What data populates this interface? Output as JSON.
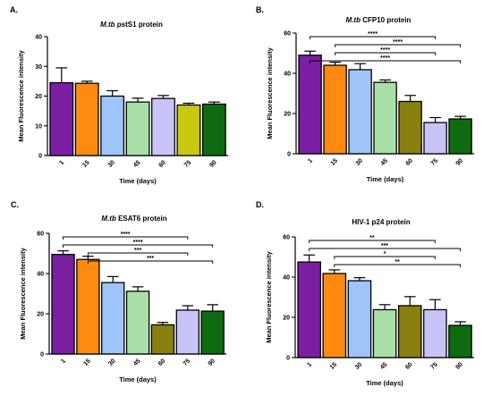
{
  "panels": [
    {
      "letter": "A.",
      "title_italic": "M.tb",
      "title_rest": " pstS1 protein"
    },
    {
      "letter": "B.",
      "title_italic": "M.tb",
      "title_rest": " CFP10 protein"
    },
    {
      "letter": "C.",
      "title_italic": "M.tb",
      "title_rest": " ESAT6 protein"
    },
    {
      "letter": "D.",
      "title_italic": "",
      "title_rest": "HIV-1 p24 protein"
    }
  ],
  "chart_data": [
    {
      "type": "bar",
      "title": "M.tb pstS1 protein",
      "xlabel": "Time (days)",
      "ylabel": "Mean Fluorescence intensity",
      "ylim": [
        0,
        40
      ],
      "yticks": [
        0,
        10,
        20,
        30,
        40
      ],
      "categories": [
        "1",
        "15",
        "30",
        "45",
        "60",
        "75",
        "90"
      ],
      "values": [
        24.5,
        24.3,
        20,
        18,
        19.2,
        17,
        17.3
      ],
      "errors": [
        5,
        0.7,
        1.8,
        1.3,
        1,
        0.6,
        0.7
      ],
      "colors": [
        "#7a1fa2",
        "#ff8a10",
        "#9fc4f8",
        "#a8e0a8",
        "#c8c4f8",
        "#c8c810",
        "#0e6b10"
      ],
      "significance": []
    },
    {
      "type": "bar",
      "title": "M.tb CFP10 protein",
      "xlabel": "Time (days)",
      "ylabel": "Mean Fluorescence intensity",
      "ylim": [
        0,
        60
      ],
      "yticks": [
        0,
        20,
        40,
        60
      ],
      "categories": [
        "1",
        "15",
        "30",
        "45",
        "60",
        "75",
        "90"
      ],
      "values": [
        49,
        44,
        41.8,
        35.5,
        26,
        15.5,
        17.3
      ],
      "errors": [
        2,
        1.5,
        3,
        1.2,
        3,
        2.5,
        1.3
      ],
      "colors": [
        "#7a1fa2",
        "#ff8a10",
        "#9fc4f8",
        "#a8e0a8",
        "#888010",
        "#c8c4f8",
        "#0e6b10"
      ],
      "significance": [
        {
          "from": "1",
          "to": "75",
          "label": "****"
        },
        {
          "from": "15",
          "to": "90",
          "label": "****"
        },
        {
          "from": "15",
          "to": "75",
          "label": "****"
        },
        {
          "from": "1",
          "to": "90",
          "label": "****"
        }
      ]
    },
    {
      "type": "bar",
      "title": "M.tb ESAT6 protein",
      "xlabel": "Time (days)",
      "ylabel": "Mean Fluorescence intensity",
      "ylim": [
        0,
        60
      ],
      "yticks": [
        0,
        20,
        40,
        60
      ],
      "categories": [
        "1",
        "15",
        "30",
        "45",
        "60",
        "75",
        "90"
      ],
      "values": [
        49.5,
        47,
        35.5,
        31.2,
        14.5,
        21.8,
        21.3
      ],
      "errors": [
        1.8,
        1.6,
        3,
        2.2,
        1.2,
        2.2,
        3.2
      ],
      "colors": [
        "#7a1fa2",
        "#ff8a10",
        "#9fc4f8",
        "#a8e0a8",
        "#888010",
        "#c8c4f8",
        "#0e6b10"
      ],
      "significance": [
        {
          "from": "1",
          "to": "75",
          "label": "****"
        },
        {
          "from": "1",
          "to": "90",
          "label": "****"
        },
        {
          "from": "15",
          "to": "75",
          "label": "***"
        },
        {
          "from": "15",
          "to": "90",
          "label": "***"
        }
      ]
    },
    {
      "type": "bar",
      "title": "HIV-1 p24 protein",
      "xlabel": "Time (days)",
      "ylabel": "Mean Fluorescence intensity",
      "ylim": [
        0,
        60
      ],
      "yticks": [
        0,
        20,
        40,
        60
      ],
      "categories": [
        "1",
        "15",
        "30",
        "45",
        "60",
        "75",
        "90"
      ],
      "values": [
        47.5,
        41.8,
        38.2,
        23.8,
        25.8,
        23.8,
        16
      ],
      "errors": [
        3.5,
        1.8,
        1.5,
        2.5,
        4.5,
        5,
        1.8
      ],
      "colors": [
        "#7a1fa2",
        "#ff8a10",
        "#9fc4f8",
        "#a8e0a8",
        "#888010",
        "#c8c4f8",
        "#0e6b10"
      ],
      "significance": [
        {
          "from": "1",
          "to": "75",
          "label": "**"
        },
        {
          "from": "1",
          "to": "90",
          "label": "***"
        },
        {
          "from": "15",
          "to": "75",
          "label": "*"
        },
        {
          "from": "15",
          "to": "90",
          "label": "**"
        }
      ]
    }
  ]
}
